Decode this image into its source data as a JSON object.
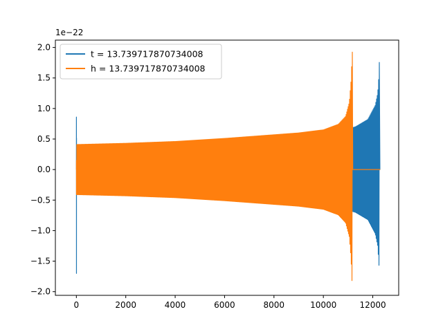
{
  "chart_data": {
    "type": "line",
    "title": "",
    "xlabel": "",
    "ylabel": "",
    "y_offset_text": "1e−22",
    "xlim": [
      -850,
      13050
    ],
    "ylim": [
      -2.06,
      2.12
    ],
    "x_ticks": [
      0,
      2000,
      4000,
      6000,
      8000,
      10000,
      12000
    ],
    "x_tick_labels": [
      "0",
      "2000",
      "4000",
      "6000",
      "8000",
      "10000",
      "12000"
    ],
    "y_ticks": [
      -2.0,
      -1.5,
      -1.0,
      -0.5,
      0.0,
      0.5,
      1.0,
      1.5,
      2.0
    ],
    "y_tick_labels": [
      "−2.0",
      "−1.5",
      "−1.0",
      "−0.5",
      "0.0",
      "0.5",
      "1.0",
      "1.5",
      "2.0"
    ],
    "grid": false,
    "legend_position": "top-left",
    "series": [
      {
        "name": "t = 13.739717870734008",
        "color": "#1f77b4",
        "transient": {
          "start": 0,
          "end": 10,
          "min": -1.7,
          "max": 0.86
        },
        "envelope": [
          [
            10,
            0.4
          ],
          [
            2000,
            0.42
          ],
          [
            4000,
            0.45
          ],
          [
            6000,
            0.49
          ],
          [
            8000,
            0.55
          ],
          [
            9000,
            0.57
          ],
          [
            10000,
            0.6
          ],
          [
            10800,
            0.64
          ],
          [
            11300,
            0.7
          ],
          [
            11800,
            0.82
          ],
          [
            12100,
            1.05
          ],
          [
            12200,
            1.25
          ],
          [
            12250,
            1.55
          ],
          [
            12280,
            1.95
          ],
          [
            12290,
            1.9
          ]
        ],
        "tail_value": 0.0,
        "end": 12300
      },
      {
        "name": "h = 13.739717870734008",
        "color": "#ff7f0e",
        "transient": {
          "start": 0,
          "end": 10,
          "min": -0.4,
          "max": 0.15
        },
        "envelope": [
          [
            10,
            0.41
          ],
          [
            2000,
            0.43
          ],
          [
            4000,
            0.46
          ],
          [
            6000,
            0.51
          ],
          [
            8000,
            0.57
          ],
          [
            9000,
            0.6
          ],
          [
            10000,
            0.65
          ],
          [
            10600,
            0.74
          ],
          [
            10900,
            0.87
          ],
          [
            11050,
            1.1
          ],
          [
            11120,
            1.45
          ],
          [
            11170,
            1.93
          ],
          [
            11180,
            1.9
          ]
        ],
        "tail_value": 0.0,
        "tail_start": 11190,
        "end": 12300
      }
    ]
  }
}
